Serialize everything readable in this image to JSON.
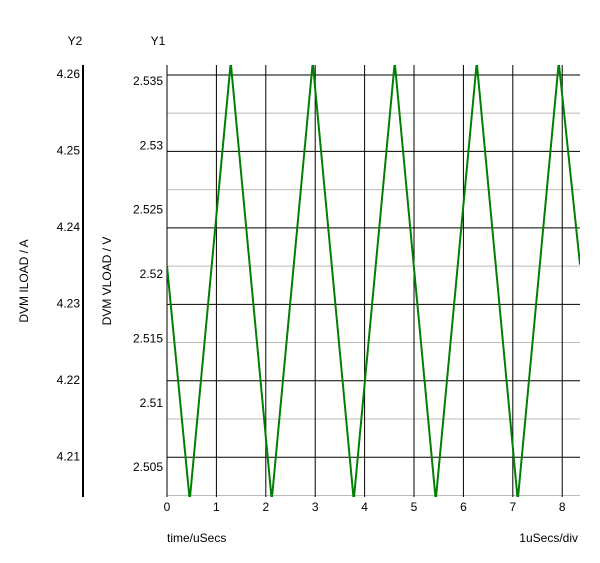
{
  "chart_data": {
    "type": "line",
    "y1_title": "Y1",
    "y2_title": "Y2",
    "ylabel": "DVM VLOAD / V",
    "y2label": "DVM ILOAD / A",
    "xlabel": "time/uSecs",
    "x_scale_note": "1uSecs/div",
    "x": [
      0,
      0.46,
      1.29,
      2.12,
      2.95,
      3.78,
      4.61,
      5.44,
      6.27,
      7.1,
      7.93,
      8.36
    ],
    "series": [
      {
        "name": "DVM VLOAD",
        "color": "#008000",
        "values": [
          2.5207,
          2.5025,
          2.5365,
          2.5025,
          2.5365,
          2.5025,
          2.5365,
          2.5025,
          2.5365,
          2.5025,
          2.5365,
          2.5208
        ]
      }
    ],
    "xlim": [
      0,
      8.36
    ],
    "xticks": [
      0,
      1,
      2,
      3,
      4,
      5,
      6,
      7,
      8
    ],
    "ylim": [
      2.50275,
      2.5363
    ],
    "yticks": [
      2.505,
      2.51,
      2.515,
      2.52,
      2.525,
      2.53,
      2.535
    ],
    "y2lim": [
      4.2048,
      4.2613
    ],
    "y2ticks": [
      4.21,
      4.22,
      4.23,
      4.24,
      4.25,
      4.26
    ],
    "grid": true
  }
}
